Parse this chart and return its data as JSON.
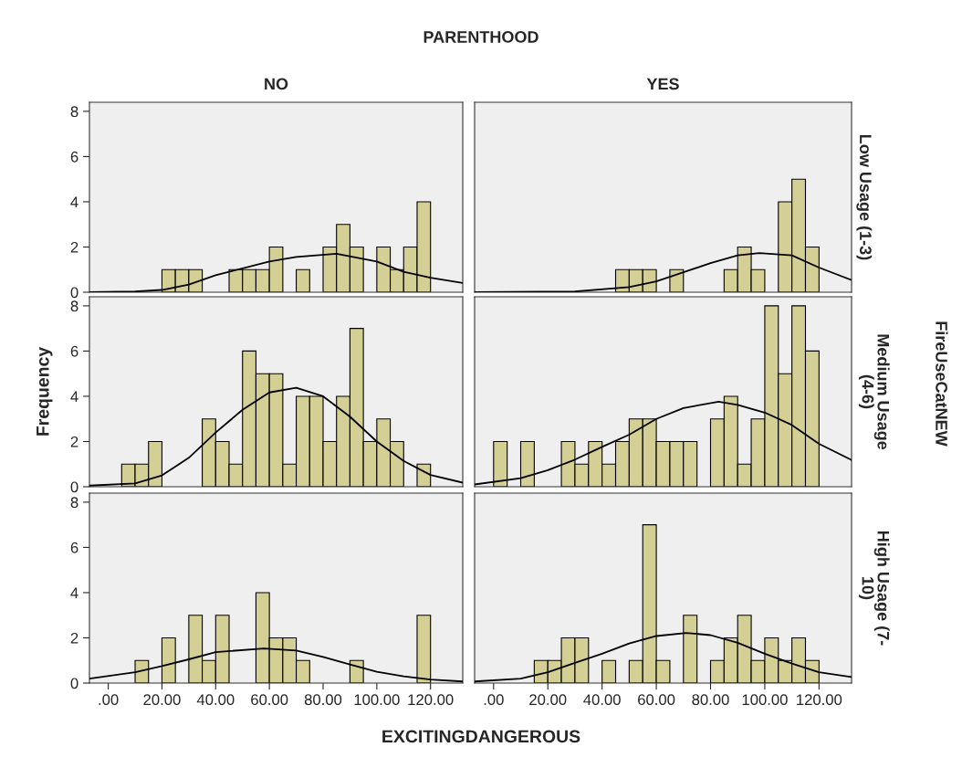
{
  "chart_data": [
    {
      "type": "histogram",
      "title": "NO",
      "annotations": [
        "PARENTHOOD",
        "FireUseCatNEW",
        "EXCITINGDANGEROUS"
      ],
      "bins": [
        0,
        5,
        10,
        15,
        20,
        25,
        30,
        35,
        40,
        45,
        50,
        55,
        60,
        65,
        70,
        75,
        80,
        85,
        90,
        95,
        100,
        105,
        110,
        115,
        120
      ],
      "xlim": [
        -7,
        132
      ],
      "ylim": [
        0,
        8.4
      ],
      "yticks": [
        0,
        2,
        4,
        6,
        8
      ],
      "tick_labels": "y",
      "series": [
        {
          "color": "#d4cf95",
          "values": [
            0,
            0,
            0,
            0,
            1,
            1,
            1,
            0,
            0,
            1,
            1,
            1,
            2,
            0,
            1,
            0,
            2,
            3,
            2,
            0,
            2,
            1,
            2,
            4
          ]
        },
        {
          "type": "line",
          "color": "#000000",
          "x": [
            -7,
            10,
            20,
            30,
            40,
            45,
            60,
            70,
            85,
            100,
            110,
            120,
            132
          ],
          "values": [
            0,
            0.03,
            0.1,
            0.34,
            0.75,
            0.9,
            1.36,
            1.56,
            1.7,
            1.36,
            0.9,
            0.64,
            0.41
          ]
        }
      ]
    },
    {
      "type": "histogram",
      "title": "YES",
      "y2label": "Low Usage (1-3)",
      "bins": [
        0,
        5,
        10,
        15,
        20,
        25,
        30,
        35,
        40,
        45,
        50,
        55,
        60,
        65,
        70,
        75,
        80,
        85,
        90,
        95,
        100,
        105,
        110,
        115,
        120
      ],
      "xlim": [
        -7,
        132
      ],
      "ylim": [
        0,
        8.4
      ],
      "tick_labels": false,
      "series": [
        {
          "color": "#d4cf95",
          "values": [
            0,
            0,
            0,
            0,
            0,
            0,
            0,
            0,
            0,
            1,
            1,
            1,
            0,
            1,
            0,
            0,
            0,
            1,
            2,
            1,
            0,
            4,
            5,
            2
          ]
        },
        {
          "type": "line",
          "color": "#000000",
          "x": [
            -7,
            30,
            50,
            60,
            70,
            80,
            90,
            98,
            110,
            120,
            132
          ],
          "values": [
            0,
            0.03,
            0.23,
            0.48,
            0.88,
            1.29,
            1.63,
            1.73,
            1.63,
            1.09,
            0.54
          ]
        }
      ]
    },
    {
      "type": "histogram",
      "ylabel": "Frequency",
      "bins": [
        0,
        5,
        10,
        15,
        20,
        25,
        30,
        35,
        40,
        45,
        50,
        55,
        60,
        65,
        70,
        75,
        80,
        85,
        90,
        95,
        100,
        105,
        110,
        115,
        120
      ],
      "xlim": [
        -7,
        132
      ],
      "ylim": [
        0,
        8.4
      ],
      "yticks": [
        0,
        2,
        4,
        6,
        8
      ],
      "tick_labels": "y",
      "series": [
        {
          "color": "#d4cf95",
          "values": [
            0,
            1,
            1,
            2,
            0,
            0,
            0,
            3,
            2,
            1,
            6,
            5,
            5,
            1,
            4,
            4,
            2,
            4,
            7,
            2,
            3,
            2,
            0,
            1
          ]
        },
        {
          "type": "line",
          "color": "#000000",
          "x": [
            -7,
            10,
            20,
            30,
            40,
            50,
            60,
            70,
            80,
            90,
            100,
            110,
            120,
            132
          ],
          "values": [
            0.05,
            0.15,
            0.5,
            1.28,
            2.4,
            3.4,
            4.17,
            4.38,
            4.0,
            3.1,
            2.0,
            1.14,
            0.52,
            0.18
          ]
        }
      ]
    },
    {
      "type": "histogram",
      "y2label": "Medium Usage\n(4-6)",
      "bins": [
        0,
        5,
        10,
        15,
        20,
        25,
        30,
        35,
        40,
        45,
        50,
        55,
        60,
        65,
        70,
        75,
        80,
        85,
        90,
        95,
        100,
        105,
        110,
        115,
        120
      ],
      "xlim": [
        -7,
        132
      ],
      "ylim": [
        0,
        8.4
      ],
      "tick_labels": false,
      "series": [
        {
          "color": "#d4cf95",
          "values": [
            2,
            0,
            2,
            0,
            0,
            2,
            1,
            2,
            1,
            2,
            3,
            3,
            2,
            2,
            2,
            0,
            3,
            4,
            1,
            3,
            8,
            5,
            8,
            6
          ]
        },
        {
          "type": "line",
          "color": "#000000",
          "x": [
            -7,
            10,
            20,
            30,
            40,
            50,
            60,
            70,
            83,
            90,
            100,
            110,
            120,
            132
          ],
          "values": [
            0.1,
            0.38,
            0.73,
            1.2,
            1.76,
            2.3,
            3.0,
            3.48,
            3.76,
            3.62,
            3.28,
            2.73,
            1.9,
            1.18
          ]
        }
      ]
    },
    {
      "type": "histogram",
      "bins": [
        0,
        5,
        10,
        15,
        20,
        25,
        30,
        35,
        40,
        45,
        50,
        55,
        60,
        65,
        70,
        75,
        80,
        85,
        90,
        95,
        100,
        105,
        110,
        115,
        120
      ],
      "xlim": [
        -7,
        132
      ],
      "ylim": [
        0,
        8.4
      ],
      "yticks": [
        0,
        2,
        4,
        6,
        8
      ],
      "xticks": [
        {
          "value": 0,
          "label": ".00"
        },
        {
          "value": 20,
          "label": "20.00"
        },
        {
          "value": 40,
          "label": "40.00"
        },
        {
          "value": 60,
          "label": "60.00"
        },
        {
          "value": 80,
          "label": "80.00"
        },
        {
          "value": 100,
          "label": "100.00"
        },
        {
          "value": 120,
          "label": "120.00"
        }
      ],
      "series": [
        {
          "color": "#d4cf95",
          "values": [
            0,
            0,
            1,
            0,
            2,
            0,
            3,
            1,
            3,
            0,
            0,
            4,
            2,
            2,
            1,
            0,
            0,
            0,
            1,
            0,
            0,
            0,
            0,
            3
          ]
        },
        {
          "type": "line",
          "color": "#000000",
          "x": [
            -7,
            10,
            20,
            30,
            40,
            58,
            70,
            80,
            90,
            100,
            110,
            120,
            132
          ],
          "values": [
            0.2,
            0.48,
            0.75,
            1.05,
            1.37,
            1.53,
            1.44,
            1.16,
            0.82,
            0.5,
            0.3,
            0.16,
            0.07
          ]
        }
      ]
    },
    {
      "type": "histogram",
      "y2label": "High Usage (7-\n10)",
      "bins": [
        0,
        5,
        10,
        15,
        20,
        25,
        30,
        35,
        40,
        45,
        50,
        55,
        60,
        65,
        70,
        75,
        80,
        85,
        90,
        95,
        100,
        105,
        110,
        115,
        120
      ],
      "xlim": [
        -7,
        132
      ],
      "ylim": [
        0,
        8.4
      ],
      "xticks": [
        {
          "value": 0,
          "label": ".00"
        },
        {
          "value": 20,
          "label": "20.00"
        },
        {
          "value": 40,
          "label": "40.00"
        },
        {
          "value": 60,
          "label": "60.00"
        },
        {
          "value": 80,
          "label": "80.00"
        },
        {
          "value": 100,
          "label": "100.00"
        },
        {
          "value": 120,
          "label": "120.00"
        }
      ],
      "tick_labels": "x",
      "series": [
        {
          "color": "#d4cf95",
          "values": [
            0,
            0,
            0,
            1,
            1,
            2,
            2,
            0,
            1,
            0,
            1,
            7,
            1,
            0,
            3,
            0,
            1,
            2,
            3,
            1,
            2,
            1,
            2,
            1
          ]
        },
        {
          "type": "line",
          "color": "#000000",
          "x": [
            -7,
            10,
            20,
            30,
            40,
            50,
            60,
            71,
            80,
            90,
            100,
            110,
            120,
            132
          ],
          "values": [
            0.07,
            0.2,
            0.48,
            0.89,
            1.3,
            1.75,
            2.08,
            2.22,
            2.12,
            1.78,
            1.3,
            0.86,
            0.48,
            0.27
          ]
        }
      ]
    }
  ]
}
